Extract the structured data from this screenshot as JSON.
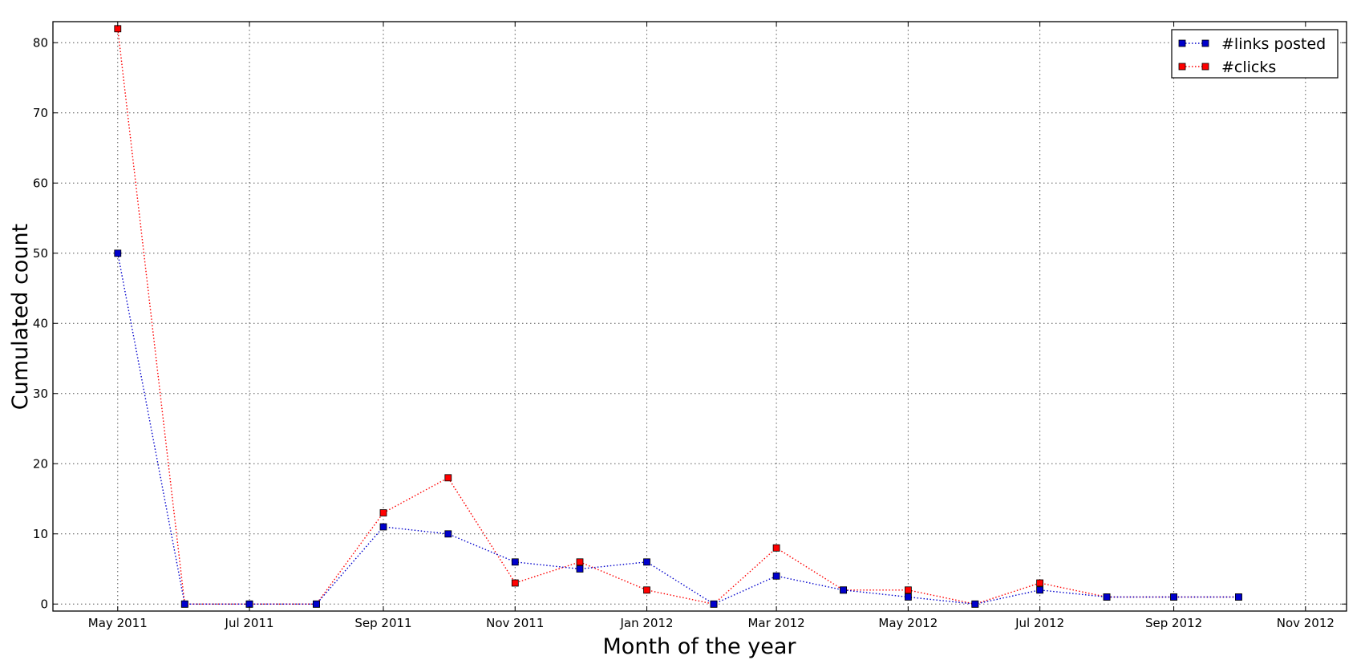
{
  "chart_data": {
    "type": "line",
    "title": "",
    "xlabel": "Month of the year",
    "ylabel": "Cumulated count",
    "x": [
      "2011-05",
      "2011-06",
      "2011-07",
      "2011-08",
      "2011-09",
      "2011-10",
      "2011-11",
      "2011-12",
      "2012-01",
      "2012-02",
      "2012-03",
      "2012-04",
      "2012-05",
      "2012-06",
      "2012-07",
      "2012-08",
      "2012-09",
      "2012-10"
    ],
    "x_tick_labels": [
      "May 2011",
      "Jul 2011",
      "Sep 2011",
      "Nov 2011",
      "Jan 2012",
      "Mar 2012",
      "May 2012",
      "Jul 2012",
      "Sep 2012",
      "Nov 2012"
    ],
    "xlim": [
      "2011-04-01",
      "2012-11-20"
    ],
    "y_ticks": [
      0,
      10,
      20,
      30,
      40,
      50,
      60,
      70,
      80
    ],
    "ylim": [
      -1,
      83
    ],
    "grid": true,
    "legend_position": "top-right",
    "series": [
      {
        "name": "#links posted",
        "color": "#0000cc",
        "marker": "square",
        "line_style": "dotted",
        "values": [
          50,
          0,
          0,
          0,
          11,
          10,
          6,
          5,
          6,
          0,
          4,
          2,
          1,
          0,
          2,
          1,
          1,
          1
        ]
      },
      {
        "name": "#clicks",
        "color": "#ff0000",
        "marker": "square",
        "line_style": "dotted",
        "values": [
          82,
          0,
          0,
          0,
          13,
          18,
          3,
          6,
          2,
          0,
          8,
          2,
          2,
          0,
          3,
          1,
          1,
          1
        ]
      }
    ]
  }
}
